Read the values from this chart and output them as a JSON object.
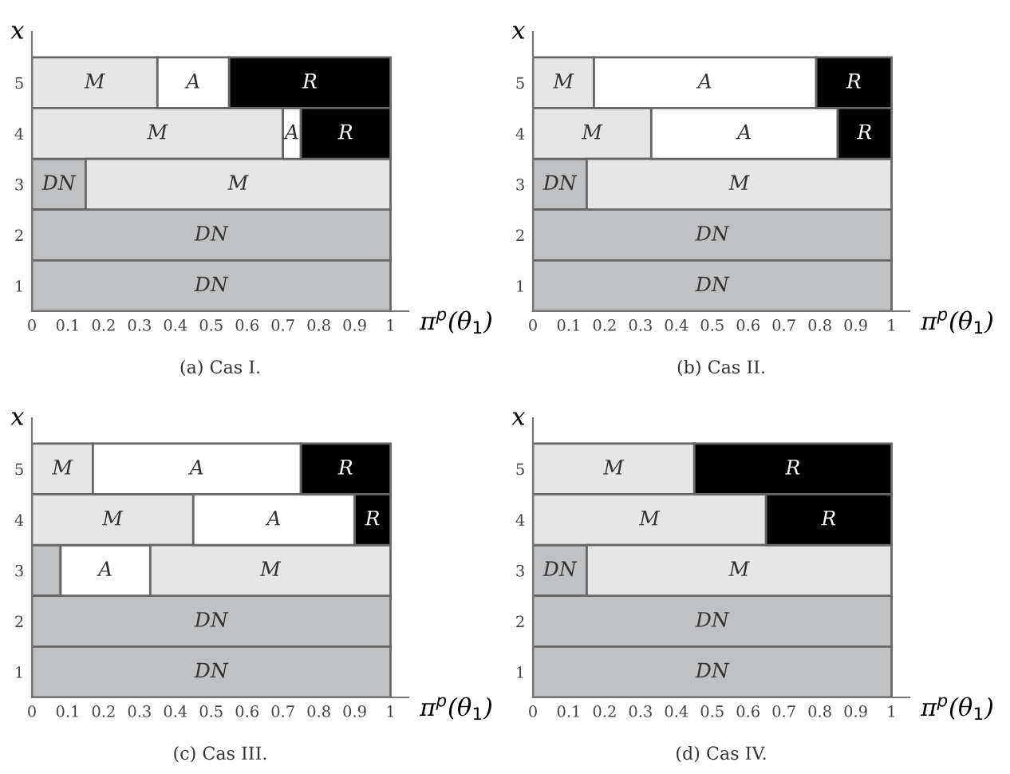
{
  "chart_data": [
    {
      "type": "bar",
      "orientation": "horizontal",
      "stacked": true,
      "title": "(a) Cas I.",
      "xlabel": "π$^{p}$(θ$_{1}$)",
      "ylabel": "x",
      "categories": [
        "5",
        "4",
        "3",
        "2",
        "1"
      ],
      "xlim": [
        0,
        1.05
      ],
      "xticks": [
        0,
        0.1,
        0.2,
        0.3,
        0.4,
        0.5,
        0.6,
        0.7,
        0.8,
        0.9,
        1
      ],
      "grid": false,
      "series": [
        {
          "color": "#c0c1c3",
          "values": [
            null,
            null,
            0.15,
            1,
            1
          ],
          "value_labels": [
            null,
            null,
            "DN",
            "DN",
            "DN"
          ]
        },
        {
          "color": "#e6e6e6",
          "values": [
            0.35,
            0.7,
            0.85,
            null,
            null
          ],
          "value_labels": [
            "M",
            "M",
            "M",
            null,
            null
          ]
        },
        {
          "color": "#ffffff",
          "values": [
            0.2,
            0.05,
            null,
            null,
            null
          ],
          "value_labels": [
            "A",
            "A",
            null,
            null,
            null
          ]
        },
        {
          "color": "#000000",
          "values": [
            0.45,
            0.25,
            null,
            null,
            null
          ],
          "value_labels": [
            "R",
            "R",
            null,
            null,
            null
          ]
        }
      ]
    },
    {
      "type": "bar",
      "orientation": "horizontal",
      "stacked": true,
      "title": "(b) Cas II.",
      "xlabel": "π$^{p}$(θ$_{1}$)",
      "ylabel": "x",
      "categories": [
        "5",
        "4",
        "3",
        "2",
        "1"
      ],
      "xlim": [
        0,
        1.05
      ],
      "xticks": [
        0,
        0.1,
        0.2,
        0.3,
        0.4,
        0.5,
        0.6,
        0.7,
        0.8,
        0.9,
        1
      ],
      "grid": false,
      "series": [
        {
          "color": "#c0c1c3",
          "values": [
            null,
            null,
            0.15,
            1,
            1
          ],
          "value_labels": [
            null,
            null,
            "DN",
            "DN",
            "DN"
          ]
        },
        {
          "color": "#e6e6e6",
          "values": [
            0.17,
            0.33,
            0.85,
            null,
            null
          ],
          "value_labels": [
            "M",
            "M",
            "M",
            null,
            null
          ]
        },
        {
          "color": "#ffffff",
          "values": [
            0.62,
            0.52,
            null,
            null,
            null
          ],
          "value_labels": [
            "A",
            "A",
            null,
            null,
            null
          ]
        },
        {
          "color": "#000000",
          "values": [
            0.21,
            0.15,
            null,
            null,
            null
          ],
          "value_labels": [
            "R",
            "R",
            null,
            null,
            null
          ]
        }
      ]
    },
    {
      "type": "bar",
      "orientation": "horizontal",
      "stacked": true,
      "title": "(c) Cas III.",
      "xlabel": "π$^{p}$(θ$_{1}$)",
      "ylabel": "x",
      "categories": [
        "5",
        "4",
        "3",
        "2",
        "1"
      ],
      "xlim": [
        0,
        1.05
      ],
      "xticks": [
        0,
        0.1,
        0.2,
        0.3,
        0.4,
        0.5,
        0.6,
        0.7,
        0.8,
        0.9,
        1
      ],
      "grid": false,
      "series": [
        {
          "color": "#c0c1c3",
          "values": [
            null,
            null,
            0.08,
            1,
            1
          ],
          "value_labels": [
            null,
            null,
            null,
            "DN",
            "DN"
          ]
        },
        {
          "color": "#ffffff",
          "values": [
            null,
            null,
            0.25,
            null,
            null
          ],
          "value_labels": [
            null,
            null,
            "A",
            null,
            null
          ]
        },
        {
          "color": "#e6e6e6",
          "values": [
            0.17,
            0.45,
            0.67,
            null,
            null
          ],
          "value_labels": [
            "M",
            "M",
            "M",
            null,
            null
          ]
        },
        {
          "color": "#ffffff",
          "values": [
            0.58,
            0.45,
            null,
            null,
            null
          ],
          "value_labels": [
            "A",
            "A",
            null,
            null,
            null
          ]
        },
        {
          "color": "#000000",
          "values": [
            0.25,
            0.1,
            null,
            null,
            null
          ],
          "value_labels": [
            "R",
            "R",
            null,
            null,
            null
          ]
        }
      ]
    },
    {
      "type": "bar",
      "orientation": "horizontal",
      "stacked": true,
      "title": "(d) Cas IV.",
      "xlabel": "π$^{p}$(θ$_{1}$)",
      "ylabel": "x",
      "categories": [
        "5",
        "4",
        "3",
        "2",
        "1"
      ],
      "xlim": [
        0,
        1.05
      ],
      "xticks": [
        0,
        0.1,
        0.2,
        0.3,
        0.4,
        0.5,
        0.6,
        0.7,
        0.8,
        0.9,
        1
      ],
      "grid": false,
      "series": [
        {
          "color": "#c0c1c3",
          "values": [
            null,
            null,
            0.15,
            1,
            1
          ],
          "value_labels": [
            null,
            null,
            "DN",
            "DN",
            "DN"
          ]
        },
        {
          "color": "#e6e6e6",
          "values": [
            0.45,
            0.65,
            0.85,
            null,
            null
          ],
          "value_labels": [
            "M",
            "M",
            "M",
            null,
            null
          ]
        },
        {
          "color": "#000000",
          "values": [
            0.55,
            0.35,
            null,
            null,
            null
          ],
          "value_labels": [
            "R",
            "R",
            null,
            null,
            null
          ]
        }
      ]
    }
  ]
}
